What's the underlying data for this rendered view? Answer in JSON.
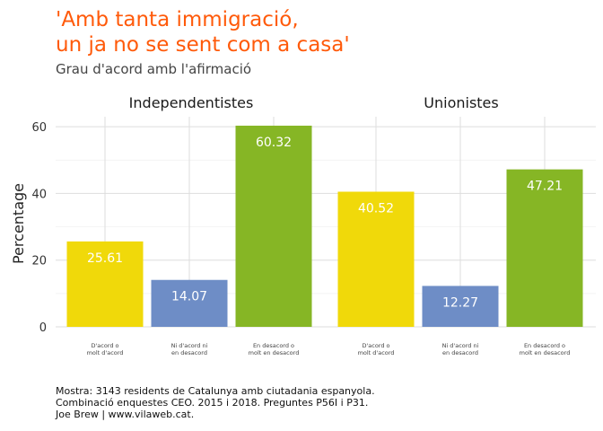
{
  "chart_data": {
    "type": "bar",
    "title_lines": [
      "'Amb tanta immigració,",
      "un ja no se sent com a casa'"
    ],
    "subtitle": "Grau d'acord amb l'afirmació",
    "ylabel": "Percentage",
    "xlabel": "",
    "ylim": [
      0,
      63
    ],
    "yticks": [
      0,
      20,
      40,
      60
    ],
    "grid": true,
    "legend": "none",
    "categories": [
      [
        "D'acord o",
        "molt d'acord"
      ],
      [
        "Ni d'acord ni",
        "en desacord"
      ],
      [
        "En desacord o",
        "molt en desacord"
      ]
    ],
    "category_colors": [
      "#f0d90a",
      "#6e8dc6",
      "#86b625"
    ],
    "facets": [
      {
        "name": "Independentistes",
        "values": [
          25.61,
          14.07,
          60.32
        ]
      },
      {
        "name": "Unionistes",
        "values": [
          40.52,
          12.27,
          47.21
        ]
      }
    ]
  },
  "caption_lines": [
    "Mostra: 3143 residents de Catalunya amb ciutadania espanyola.",
    "Combinació enquestes CEO. 2015 i 2018. Preguntes P56I i P31.",
    "Joe Brew | www.vilaweb.cat."
  ]
}
